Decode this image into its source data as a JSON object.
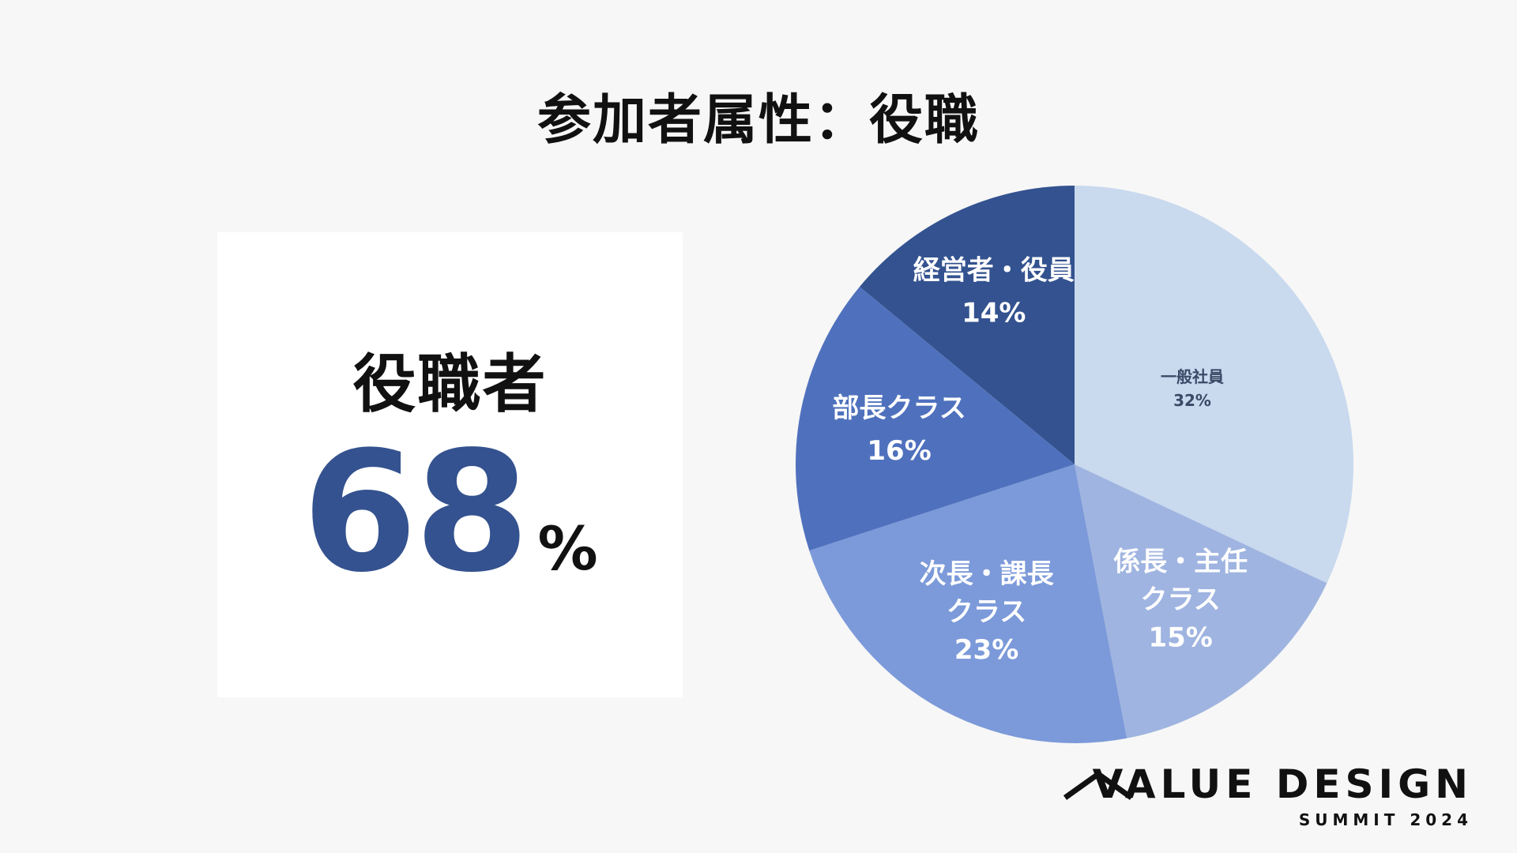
{
  "title": "参加者属性：役職",
  "stat": {
    "label": "役職者",
    "value": "68",
    "unit": "%"
  },
  "chart_data": {
    "type": "pie",
    "slices": [
      {
        "label": [
          "一般社員"
        ],
        "percent_label": "32%",
        "value": 32,
        "color": "#c9d9ee",
        "label_color": "#3a4a66"
      },
      {
        "label": [
          "係長・主任",
          "クラス"
        ],
        "percent_label": "15%",
        "value": 15,
        "color": "#9fb4e0",
        "label_color": "#ffffff"
      },
      {
        "label": [
          "次長・課長",
          "クラス"
        ],
        "percent_label": "23%",
        "value": 23,
        "color": "#7c9ad9",
        "label_color": "#ffffff"
      },
      {
        "label": [
          "部長クラス"
        ],
        "percent_label": "16%",
        "value": 16,
        "color": "#4f71bd",
        "label_color": "#ffffff"
      },
      {
        "label": [
          "経営者・役員"
        ],
        "percent_label": "14%",
        "value": 14,
        "color": "#33528f",
        "label_color": "#ffffff"
      }
    ]
  },
  "logo": {
    "name": "VALUE DESIGN",
    "subtitle": "SUMMIT 2024"
  }
}
